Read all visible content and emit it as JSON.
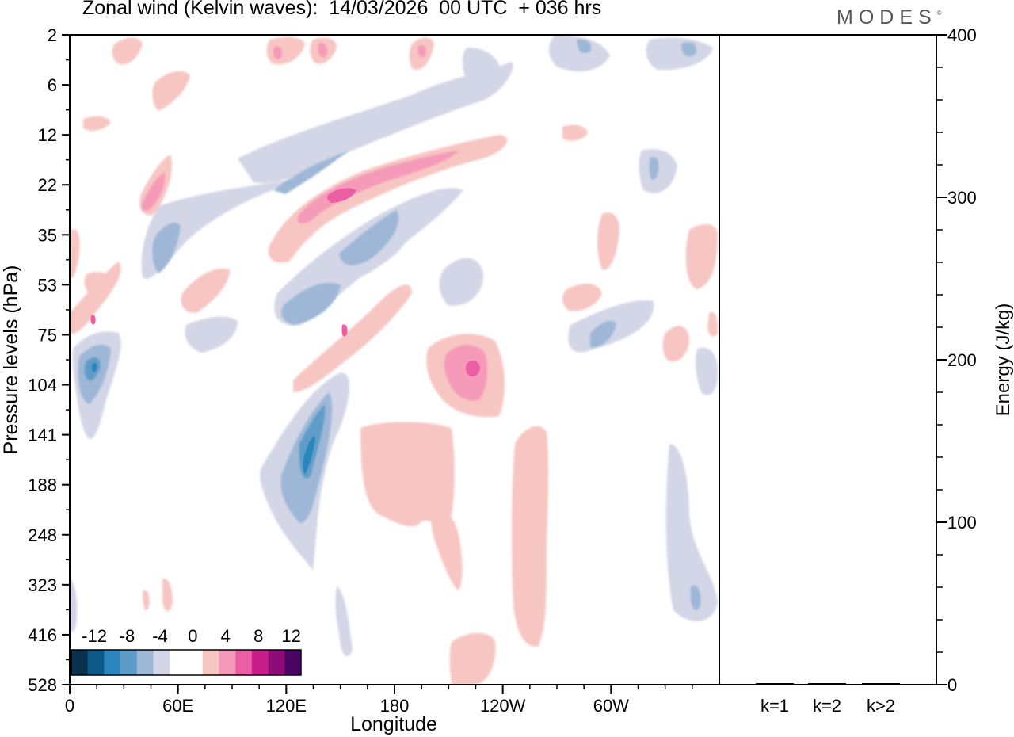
{
  "chart_data": [
    {
      "type": "heatmap",
      "title": "Zonal wind (Kelvin waves):  14/03/2026  00 UTC  + 036 hrs",
      "xlabel": "Longitude",
      "ylabel": "Pressure levels (hPa)",
      "x_ticks": [
        "0",
        "60E",
        "120E",
        "180",
        "120W",
        "60W"
      ],
      "y_ticks": [
        "2",
        "6",
        "12",
        "22",
        "35",
        "53",
        "75",
        "104",
        "141",
        "188",
        "248",
        "323",
        "416",
        "528"
      ],
      "y_scale": "log",
      "colorbar": {
        "labels": [
          "-12",
          "-8",
          "-4",
          "0",
          "4",
          "8",
          "12"
        ],
        "colors": [
          "#08304f",
          "#0b5a8a",
          "#2a86bd",
          "#5e9cc8",
          "#9eb7d7",
          "#d3d6e6",
          "#ffffff",
          "#ffffff",
          "#f7c6c2",
          "#f59ab8",
          "#ec5ea4",
          "#c81d8a",
          "#8e0c78",
          "#4b0565"
        ]
      },
      "features": [
        {
          "sign": "negative",
          "peak": -12,
          "lon": 20,
          "level": 95
        },
        {
          "sign": "negative",
          "peak": -12,
          "lon": 123,
          "level": 150
        },
        {
          "sign": "positive",
          "peak": 8,
          "lon": 150,
          "level": 24
        },
        {
          "sign": "positive",
          "peak": 8,
          "lon": 225,
          "level": 95
        }
      ]
    },
    {
      "type": "bar",
      "categories": [
        "k=1",
        "k=2",
        "k>2"
      ],
      "values": [
        0,
        0,
        0
      ],
      "ylabel": "Energy (J/kg)",
      "ylim": [
        0,
        400
      ],
      "y_ticks": [
        "0",
        "100",
        "200",
        "300",
        "400"
      ]
    }
  ],
  "logo": "MODES",
  "logo_mark": "©"
}
